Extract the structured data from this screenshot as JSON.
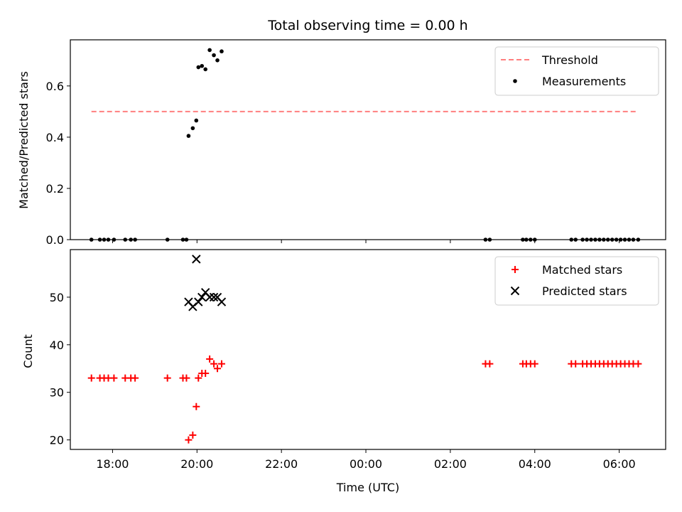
{
  "chart_data": [
    {
      "type": "scatter",
      "title": "Total observing time = 0.00 h",
      "xlabel": "",
      "ylabel": "Matched/Predicted stars",
      "x_type": "time",
      "xlim": [
        "17:00",
        "07:06"
      ],
      "ylim": [
        0,
        0.78
      ],
      "yticks": [
        "0.0",
        "0.2",
        "0.4",
        "0.6"
      ],
      "grid": false,
      "legend": "upper right",
      "series": [
        {
          "name": "Threshold",
          "kind": "line",
          "style": "dashed",
          "color": "#ff7f7f",
          "points": [
            [
              "17:30",
              0.5
            ],
            [
              "06:24",
              0.5
            ]
          ]
        },
        {
          "name": "Measurements",
          "kind": "scatter",
          "marker": "dot",
          "color": "#000000",
          "points": [
            [
              "17:30",
              0.0
            ],
            [
              "17:42",
              0.0
            ],
            [
              "17:48",
              0.0
            ],
            [
              "17:54",
              0.0
            ],
            [
              "18:02",
              0.0
            ],
            [
              "18:18",
              0.0
            ],
            [
              "18:26",
              0.0
            ],
            [
              "18:32",
              0.0
            ],
            [
              "19:18",
              0.0
            ],
            [
              "19:40",
              0.0
            ],
            [
              "19:45",
              0.0
            ],
            [
              "19:48",
              0.405
            ],
            [
              "19:54",
              0.435
            ],
            [
              "19:59",
              0.465
            ],
            [
              "20:02",
              0.673
            ],
            [
              "20:07",
              0.678
            ],
            [
              "20:12",
              0.665
            ],
            [
              "20:18",
              0.74
            ],
            [
              "20:24",
              0.72
            ],
            [
              "20:29",
              0.7
            ],
            [
              "20:35",
              0.735
            ],
            [
              "02:50",
              0.0
            ],
            [
              "02:56",
              0.0
            ],
            [
              "03:43",
              0.0
            ],
            [
              "03:48",
              0.0
            ],
            [
              "03:54",
              0.0
            ],
            [
              "04:00",
              0.0
            ],
            [
              "04:52",
              0.0
            ],
            [
              "04:58",
              0.0
            ],
            [
              "05:08",
              0.0
            ],
            [
              "05:14",
              0.0
            ],
            [
              "05:20",
              0.0
            ],
            [
              "05:26",
              0.0
            ],
            [
              "05:32",
              0.0
            ],
            [
              "05:38",
              0.0
            ],
            [
              "05:44",
              0.0
            ],
            [
              "05:50",
              0.0
            ],
            [
              "05:56",
              0.0
            ],
            [
              "06:02",
              0.0
            ],
            [
              "06:08",
              0.0
            ],
            [
              "06:14",
              0.0
            ],
            [
              "06:20",
              0.0
            ],
            [
              "06:27",
              0.0
            ]
          ]
        }
      ]
    },
    {
      "type": "scatter",
      "title": "",
      "xlabel": "Time (UTC)",
      "ylabel": "Count",
      "x_type": "time",
      "xlim": [
        "17:00",
        "07:06"
      ],
      "xticks": [
        "18:00",
        "20:00",
        "22:00",
        "00:00",
        "02:00",
        "04:00",
        "06:00"
      ],
      "ylim": [
        18,
        60
      ],
      "yticks": [
        "20",
        "30",
        "40",
        "50"
      ],
      "grid": false,
      "legend": "upper right",
      "series": [
        {
          "name": "Matched stars",
          "kind": "scatter",
          "marker": "plus",
          "color": "#ff0000",
          "points": [
            [
              "17:30",
              33
            ],
            [
              "17:42",
              33
            ],
            [
              "17:48",
              33
            ],
            [
              "17:54",
              33
            ],
            [
              "18:02",
              33
            ],
            [
              "18:18",
              33
            ],
            [
              "18:26",
              33
            ],
            [
              "18:32",
              33
            ],
            [
              "19:18",
              33
            ],
            [
              "19:40",
              33
            ],
            [
              "19:45",
              33
            ],
            [
              "19:48",
              20
            ],
            [
              "19:54",
              21
            ],
            [
              "19:59",
              27
            ],
            [
              "20:02",
              33
            ],
            [
              "20:07",
              34
            ],
            [
              "20:12",
              34
            ],
            [
              "20:18",
              37
            ],
            [
              "20:24",
              36
            ],
            [
              "20:29",
              35
            ],
            [
              "20:35",
              36
            ],
            [
              "02:50",
              36
            ],
            [
              "02:56",
              36
            ],
            [
              "03:43",
              36
            ],
            [
              "03:48",
              36
            ],
            [
              "03:54",
              36
            ],
            [
              "04:00",
              36
            ],
            [
              "04:52",
              36
            ],
            [
              "04:58",
              36
            ],
            [
              "05:08",
              36
            ],
            [
              "05:14",
              36
            ],
            [
              "05:20",
              36
            ],
            [
              "05:26",
              36
            ],
            [
              "05:32",
              36
            ],
            [
              "05:38",
              36
            ],
            [
              "05:44",
              36
            ],
            [
              "05:50",
              36
            ],
            [
              "05:56",
              36
            ],
            [
              "06:02",
              36
            ],
            [
              "06:08",
              36
            ],
            [
              "06:14",
              36
            ],
            [
              "06:20",
              36
            ],
            [
              "06:27",
              36
            ]
          ]
        },
        {
          "name": "Predicted stars",
          "kind": "scatter",
          "marker": "x",
          "color": "#000000",
          "points": [
            [
              "19:48",
              49
            ],
            [
              "19:54",
              48
            ],
            [
              "19:59",
              58
            ],
            [
              "20:02",
              49
            ],
            [
              "20:07",
              50
            ],
            [
              "20:12",
              51
            ],
            [
              "20:18",
              50
            ],
            [
              "20:24",
              50
            ],
            [
              "20:29",
              50
            ],
            [
              "20:35",
              49
            ]
          ]
        }
      ]
    }
  ]
}
